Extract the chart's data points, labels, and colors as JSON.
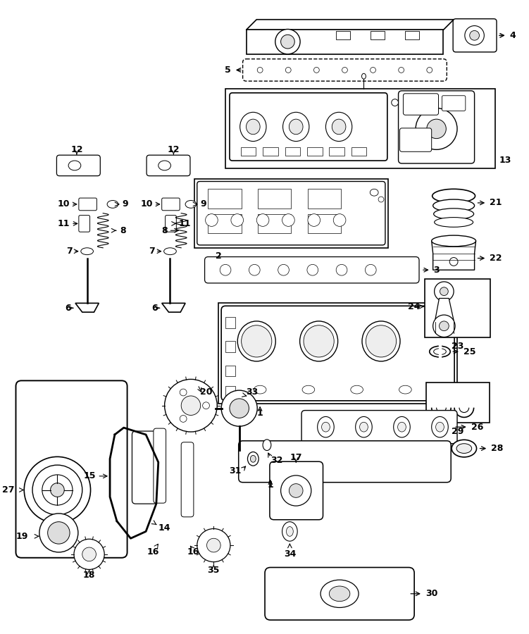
{
  "bg_color": "#ffffff",
  "line_color": "#000000",
  "figsize": [
    7.51,
    9.0
  ],
  "dpi": 100
}
